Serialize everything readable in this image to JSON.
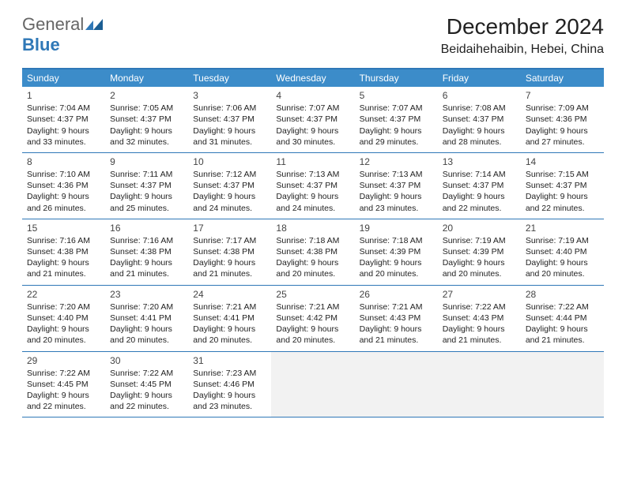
{
  "brand": {
    "part1": "General",
    "part2": "Blue"
  },
  "title": "December 2024",
  "location": "Beidaihehaibin, Hebei, China",
  "colors": {
    "header_bg": "#3c8cc9",
    "border": "#2f78b7",
    "empty_bg": "#f2f2f2",
    "text": "#222222",
    "page_bg": "#ffffff"
  },
  "typography": {
    "title_fontsize": 28,
    "location_fontsize": 16,
    "dayhead_fontsize": 12,
    "cell_fontsize": 10.5
  },
  "day_headers": [
    "Sunday",
    "Monday",
    "Tuesday",
    "Wednesday",
    "Thursday",
    "Friday",
    "Saturday"
  ],
  "weeks": [
    [
      {
        "d": "1",
        "sr": "Sunrise: 7:04 AM",
        "ss": "Sunset: 4:37 PM",
        "dl1": "Daylight: 9 hours",
        "dl2": "and 33 minutes."
      },
      {
        "d": "2",
        "sr": "Sunrise: 7:05 AM",
        "ss": "Sunset: 4:37 PM",
        "dl1": "Daylight: 9 hours",
        "dl2": "and 32 minutes."
      },
      {
        "d": "3",
        "sr": "Sunrise: 7:06 AM",
        "ss": "Sunset: 4:37 PM",
        "dl1": "Daylight: 9 hours",
        "dl2": "and 31 minutes."
      },
      {
        "d": "4",
        "sr": "Sunrise: 7:07 AM",
        "ss": "Sunset: 4:37 PM",
        "dl1": "Daylight: 9 hours",
        "dl2": "and 30 minutes."
      },
      {
        "d": "5",
        "sr": "Sunrise: 7:07 AM",
        "ss": "Sunset: 4:37 PM",
        "dl1": "Daylight: 9 hours",
        "dl2": "and 29 minutes."
      },
      {
        "d": "6",
        "sr": "Sunrise: 7:08 AM",
        "ss": "Sunset: 4:37 PM",
        "dl1": "Daylight: 9 hours",
        "dl2": "and 28 minutes."
      },
      {
        "d": "7",
        "sr": "Sunrise: 7:09 AM",
        "ss": "Sunset: 4:36 PM",
        "dl1": "Daylight: 9 hours",
        "dl2": "and 27 minutes."
      }
    ],
    [
      {
        "d": "8",
        "sr": "Sunrise: 7:10 AM",
        "ss": "Sunset: 4:36 PM",
        "dl1": "Daylight: 9 hours",
        "dl2": "and 26 minutes."
      },
      {
        "d": "9",
        "sr": "Sunrise: 7:11 AM",
        "ss": "Sunset: 4:37 PM",
        "dl1": "Daylight: 9 hours",
        "dl2": "and 25 minutes."
      },
      {
        "d": "10",
        "sr": "Sunrise: 7:12 AM",
        "ss": "Sunset: 4:37 PM",
        "dl1": "Daylight: 9 hours",
        "dl2": "and 24 minutes."
      },
      {
        "d": "11",
        "sr": "Sunrise: 7:13 AM",
        "ss": "Sunset: 4:37 PM",
        "dl1": "Daylight: 9 hours",
        "dl2": "and 24 minutes."
      },
      {
        "d": "12",
        "sr": "Sunrise: 7:13 AM",
        "ss": "Sunset: 4:37 PM",
        "dl1": "Daylight: 9 hours",
        "dl2": "and 23 minutes."
      },
      {
        "d": "13",
        "sr": "Sunrise: 7:14 AM",
        "ss": "Sunset: 4:37 PM",
        "dl1": "Daylight: 9 hours",
        "dl2": "and 22 minutes."
      },
      {
        "d": "14",
        "sr": "Sunrise: 7:15 AM",
        "ss": "Sunset: 4:37 PM",
        "dl1": "Daylight: 9 hours",
        "dl2": "and 22 minutes."
      }
    ],
    [
      {
        "d": "15",
        "sr": "Sunrise: 7:16 AM",
        "ss": "Sunset: 4:38 PM",
        "dl1": "Daylight: 9 hours",
        "dl2": "and 21 minutes."
      },
      {
        "d": "16",
        "sr": "Sunrise: 7:16 AM",
        "ss": "Sunset: 4:38 PM",
        "dl1": "Daylight: 9 hours",
        "dl2": "and 21 minutes."
      },
      {
        "d": "17",
        "sr": "Sunrise: 7:17 AM",
        "ss": "Sunset: 4:38 PM",
        "dl1": "Daylight: 9 hours",
        "dl2": "and 21 minutes."
      },
      {
        "d": "18",
        "sr": "Sunrise: 7:18 AM",
        "ss": "Sunset: 4:38 PM",
        "dl1": "Daylight: 9 hours",
        "dl2": "and 20 minutes."
      },
      {
        "d": "19",
        "sr": "Sunrise: 7:18 AM",
        "ss": "Sunset: 4:39 PM",
        "dl1": "Daylight: 9 hours",
        "dl2": "and 20 minutes."
      },
      {
        "d": "20",
        "sr": "Sunrise: 7:19 AM",
        "ss": "Sunset: 4:39 PM",
        "dl1": "Daylight: 9 hours",
        "dl2": "and 20 minutes."
      },
      {
        "d": "21",
        "sr": "Sunrise: 7:19 AM",
        "ss": "Sunset: 4:40 PM",
        "dl1": "Daylight: 9 hours",
        "dl2": "and 20 minutes."
      }
    ],
    [
      {
        "d": "22",
        "sr": "Sunrise: 7:20 AM",
        "ss": "Sunset: 4:40 PM",
        "dl1": "Daylight: 9 hours",
        "dl2": "and 20 minutes."
      },
      {
        "d": "23",
        "sr": "Sunrise: 7:20 AM",
        "ss": "Sunset: 4:41 PM",
        "dl1": "Daylight: 9 hours",
        "dl2": "and 20 minutes."
      },
      {
        "d": "24",
        "sr": "Sunrise: 7:21 AM",
        "ss": "Sunset: 4:41 PM",
        "dl1": "Daylight: 9 hours",
        "dl2": "and 20 minutes."
      },
      {
        "d": "25",
        "sr": "Sunrise: 7:21 AM",
        "ss": "Sunset: 4:42 PM",
        "dl1": "Daylight: 9 hours",
        "dl2": "and 20 minutes."
      },
      {
        "d": "26",
        "sr": "Sunrise: 7:21 AM",
        "ss": "Sunset: 4:43 PM",
        "dl1": "Daylight: 9 hours",
        "dl2": "and 21 minutes."
      },
      {
        "d": "27",
        "sr": "Sunrise: 7:22 AM",
        "ss": "Sunset: 4:43 PM",
        "dl1": "Daylight: 9 hours",
        "dl2": "and 21 minutes."
      },
      {
        "d": "28",
        "sr": "Sunrise: 7:22 AM",
        "ss": "Sunset: 4:44 PM",
        "dl1": "Daylight: 9 hours",
        "dl2": "and 21 minutes."
      }
    ],
    [
      {
        "d": "29",
        "sr": "Sunrise: 7:22 AM",
        "ss": "Sunset: 4:45 PM",
        "dl1": "Daylight: 9 hours",
        "dl2": "and 22 minutes."
      },
      {
        "d": "30",
        "sr": "Sunrise: 7:22 AM",
        "ss": "Sunset: 4:45 PM",
        "dl1": "Daylight: 9 hours",
        "dl2": "and 22 minutes."
      },
      {
        "d": "31",
        "sr": "Sunrise: 7:23 AM",
        "ss": "Sunset: 4:46 PM",
        "dl1": "Daylight: 9 hours",
        "dl2": "and 23 minutes."
      },
      {
        "empty": true
      },
      {
        "empty": true
      },
      {
        "empty": true
      },
      {
        "empty": true
      }
    ]
  ]
}
